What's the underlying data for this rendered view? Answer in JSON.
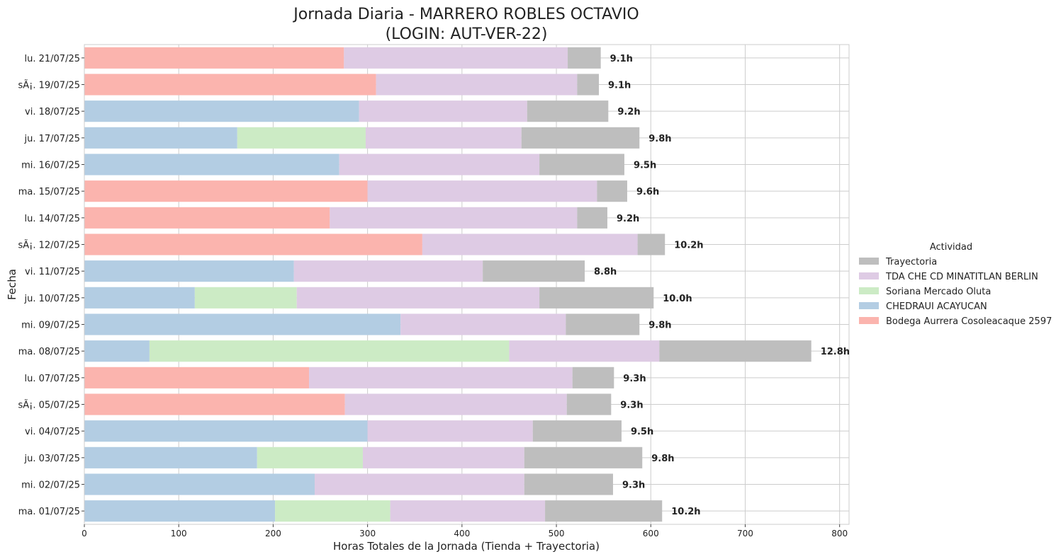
{
  "chart_data": {
    "type": "bar",
    "orientation": "horizontal",
    "stacked": true,
    "title": "Jornada Diaria - MARRERO ROBLES OCTAVIO",
    "subtitle": "(LOGIN: AUT-VER-22)",
    "xlabel": "Horas Totales de la Jornada (Tienda + Trayectoria)",
    "ylabel": "Fecha",
    "xlim": [
      0,
      810
    ],
    "xticks": [
      0,
      100,
      200,
      300,
      400,
      500,
      600,
      700,
      800
    ],
    "grid": true,
    "legend_title": "Actividad",
    "legend_position": "right",
    "categories": [
      "ma. 01/07/25",
      "mi. 02/07/25",
      "ju. 03/07/25",
      "vi. 04/07/25",
      "sÃ¡. 05/07/25",
      "lu. 07/07/25",
      "ma. 08/07/25",
      "mi. 09/07/25",
      "ju. 10/07/25",
      "vi. 11/07/25",
      "sÃ¡. 12/07/25",
      "lu. 14/07/25",
      "ma. 15/07/25",
      "mi. 16/07/25",
      "ju. 17/07/25",
      "vi. 18/07/25",
      "sÃ¡. 19/07/25",
      "lu. 21/07/25"
    ],
    "series": [
      {
        "name": "Bodega Aurrera Cosoleacaque 2597",
        "color": "#fbb4ae",
        "values": [
          0,
          0,
          0,
          0,
          276,
          238,
          0,
          0,
          0,
          0,
          358,
          260,
          300,
          0,
          0,
          0,
          309,
          275
        ]
      },
      {
        "name": "CHEDRAUI ACAYUCAN",
        "color": "#b3cde3",
        "values": [
          202,
          244,
          183,
          300,
          0,
          0,
          69,
          335,
          117,
          222,
          0,
          0,
          0,
          270,
          162,
          291,
          0,
          0
        ]
      },
      {
        "name": "Soriana Mercado Oluta",
        "color": "#ccebc5",
        "values": [
          122,
          0,
          112,
          0,
          0,
          0,
          381,
          0,
          108,
          0,
          0,
          0,
          0,
          0,
          136,
          0,
          0,
          0
        ]
      },
      {
        "name": "TDA CHE CD MINATITLAN BERLIN",
        "color": "#decbe4",
        "values": [
          164,
          222,
          171,
          175,
          235,
          279,
          159,
          175,
          257,
          200,
          228,
          262,
          243,
          212,
          165,
          178,
          213,
          237
        ]
      },
      {
        "name": "Trayectoria",
        "color": "#bebebe",
        "values": [
          124,
          94,
          125,
          94,
          47,
          44,
          161,
          78,
          121,
          108,
          29,
          32,
          32,
          90,
          125,
          86,
          23,
          35
        ]
      }
    ],
    "total_labels": [
      "10.2h",
      "9.3h",
      "9.8h",
      "9.5h",
      "9.3h",
      "9.3h",
      "12.8h",
      "9.8h",
      "10.0h",
      "8.8h",
      "10.2h",
      "9.2h",
      "9.6h",
      "9.5h",
      "9.8h",
      "9.2h",
      "9.1h",
      "9.1h"
    ],
    "legend_order": [
      "Trayectoria",
      "TDA CHE CD MINATITLAN BERLIN",
      "Soriana Mercado Oluta",
      "CHEDRAUI ACAYUCAN",
      "Bodega Aurrera Cosoleacaque 2597"
    ]
  }
}
